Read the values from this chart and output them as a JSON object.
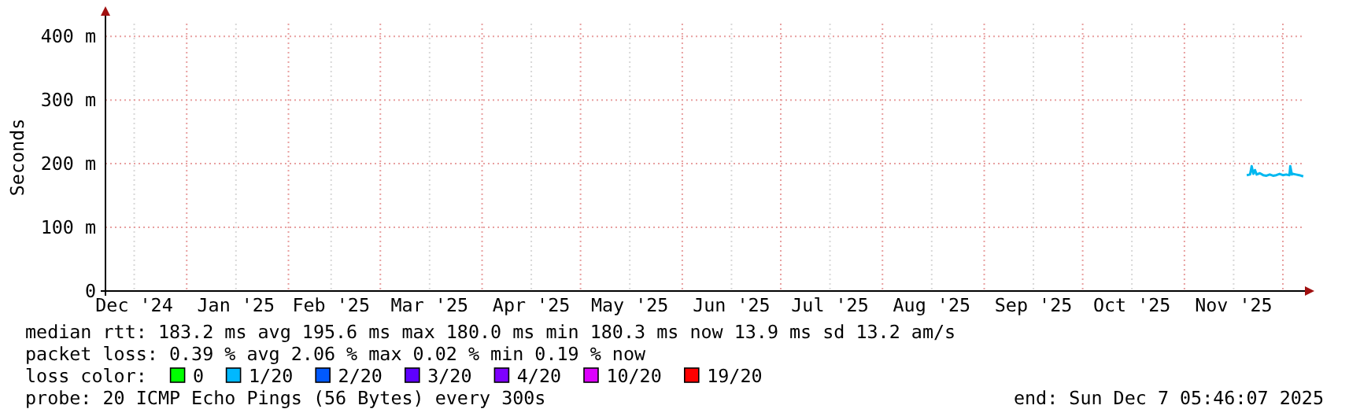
{
  "chart_data": {
    "type": "line",
    "ylabel": "Seconds",
    "xlim": [
      "2024-12-07T05:46",
      "2025-12-07T05:46"
    ],
    "xticks": [
      {
        "value": "2024-12-16",
        "label": "Dec '24"
      },
      {
        "value": "2025-01-01",
        "label": null
      },
      {
        "value": "2025-01-16",
        "label": "Jan '25"
      },
      {
        "value": "2025-02-01",
        "label": null
      },
      {
        "value": "2025-02-14",
        "label": "Feb '25"
      },
      {
        "value": "2025-03-01",
        "label": null
      },
      {
        "value": "2025-03-16",
        "label": "Mar '25"
      },
      {
        "value": "2025-04-01",
        "label": null
      },
      {
        "value": "2025-04-16",
        "label": "Apr '25"
      },
      {
        "value": "2025-05-01",
        "label": null
      },
      {
        "value": "2025-05-16",
        "label": "May '25"
      },
      {
        "value": "2025-06-01",
        "label": null
      },
      {
        "value": "2025-06-16",
        "label": "Jun '25"
      },
      {
        "value": "2025-07-01",
        "label": null
      },
      {
        "value": "2025-07-16",
        "label": "Jul '25"
      },
      {
        "value": "2025-08-01",
        "label": null
      },
      {
        "value": "2025-08-16",
        "label": "Aug '25"
      },
      {
        "value": "2025-09-01",
        "label": null
      },
      {
        "value": "2025-09-16",
        "label": "Sep '25"
      },
      {
        "value": "2025-10-01",
        "label": null
      },
      {
        "value": "2025-10-16",
        "label": "Oct '25"
      },
      {
        "value": "2025-11-01",
        "label": null
      },
      {
        "value": "2025-11-16",
        "label": "Nov '25"
      },
      {
        "value": "2025-12-01",
        "label": null
      }
    ],
    "ylim": [
      0,
      420
    ],
    "yticks": [
      {
        "value": 0,
        "label": "0"
      },
      {
        "value": 100,
        "label": "100 m"
      },
      {
        "value": 200,
        "label": "200 m"
      },
      {
        "value": 300,
        "label": "300 m"
      },
      {
        "value": 400,
        "label": "400 m"
      }
    ],
    "grid": true,
    "marker": "none",
    "line_style": "solid",
    "series": [
      {
        "color": "#00b8f0",
        "x": [
          "2025-11-20T00:00",
          "2025-11-21T00:00",
          "2025-11-21T12:00",
          "2025-11-22T00:00",
          "2025-11-22T12:00",
          "2025-11-23T00:00",
          "2025-11-24T00:00",
          "2025-11-25T00:00",
          "2025-11-26T00:00",
          "2025-11-27T00:00",
          "2025-11-28T00:00",
          "2025-11-29T00:00",
          "2025-11-30T00:00",
          "2025-12-01T00:00",
          "2025-12-02T00:00",
          "2025-12-03T00:00",
          "2025-12-03T06:00",
          "2025-12-03T18:00",
          "2025-12-04T00:00",
          "2025-12-05T00:00",
          "2025-12-06T00:00",
          "2025-12-07T05:00"
        ],
        "values": [
          182,
          183,
          196,
          184,
          190,
          183,
          185,
          182,
          181,
          183,
          181,
          182,
          184,
          182,
          183,
          182,
          196,
          183,
          184,
          183,
          182,
          180
        ]
      }
    ],
    "annotations": [
      "median rtt:  183.2 ms avg  195.6 ms max  180.0 ms min  180.3 ms now  13.9 ms sd  13.2   am/s",
      "packet loss: 0.39 % avg  2.06 % max  0.02 % min  0.19 % now",
      "loss color:",
      "0",
      "1/20",
      "2/20",
      "3/20",
      "4/20",
      "10/20",
      "19/20",
      "probe:       20 ICMP Echo Pings (56 Bytes) every 300s",
      "end: Sun Dec  7 05:46:07 2025"
    ]
  }
}
